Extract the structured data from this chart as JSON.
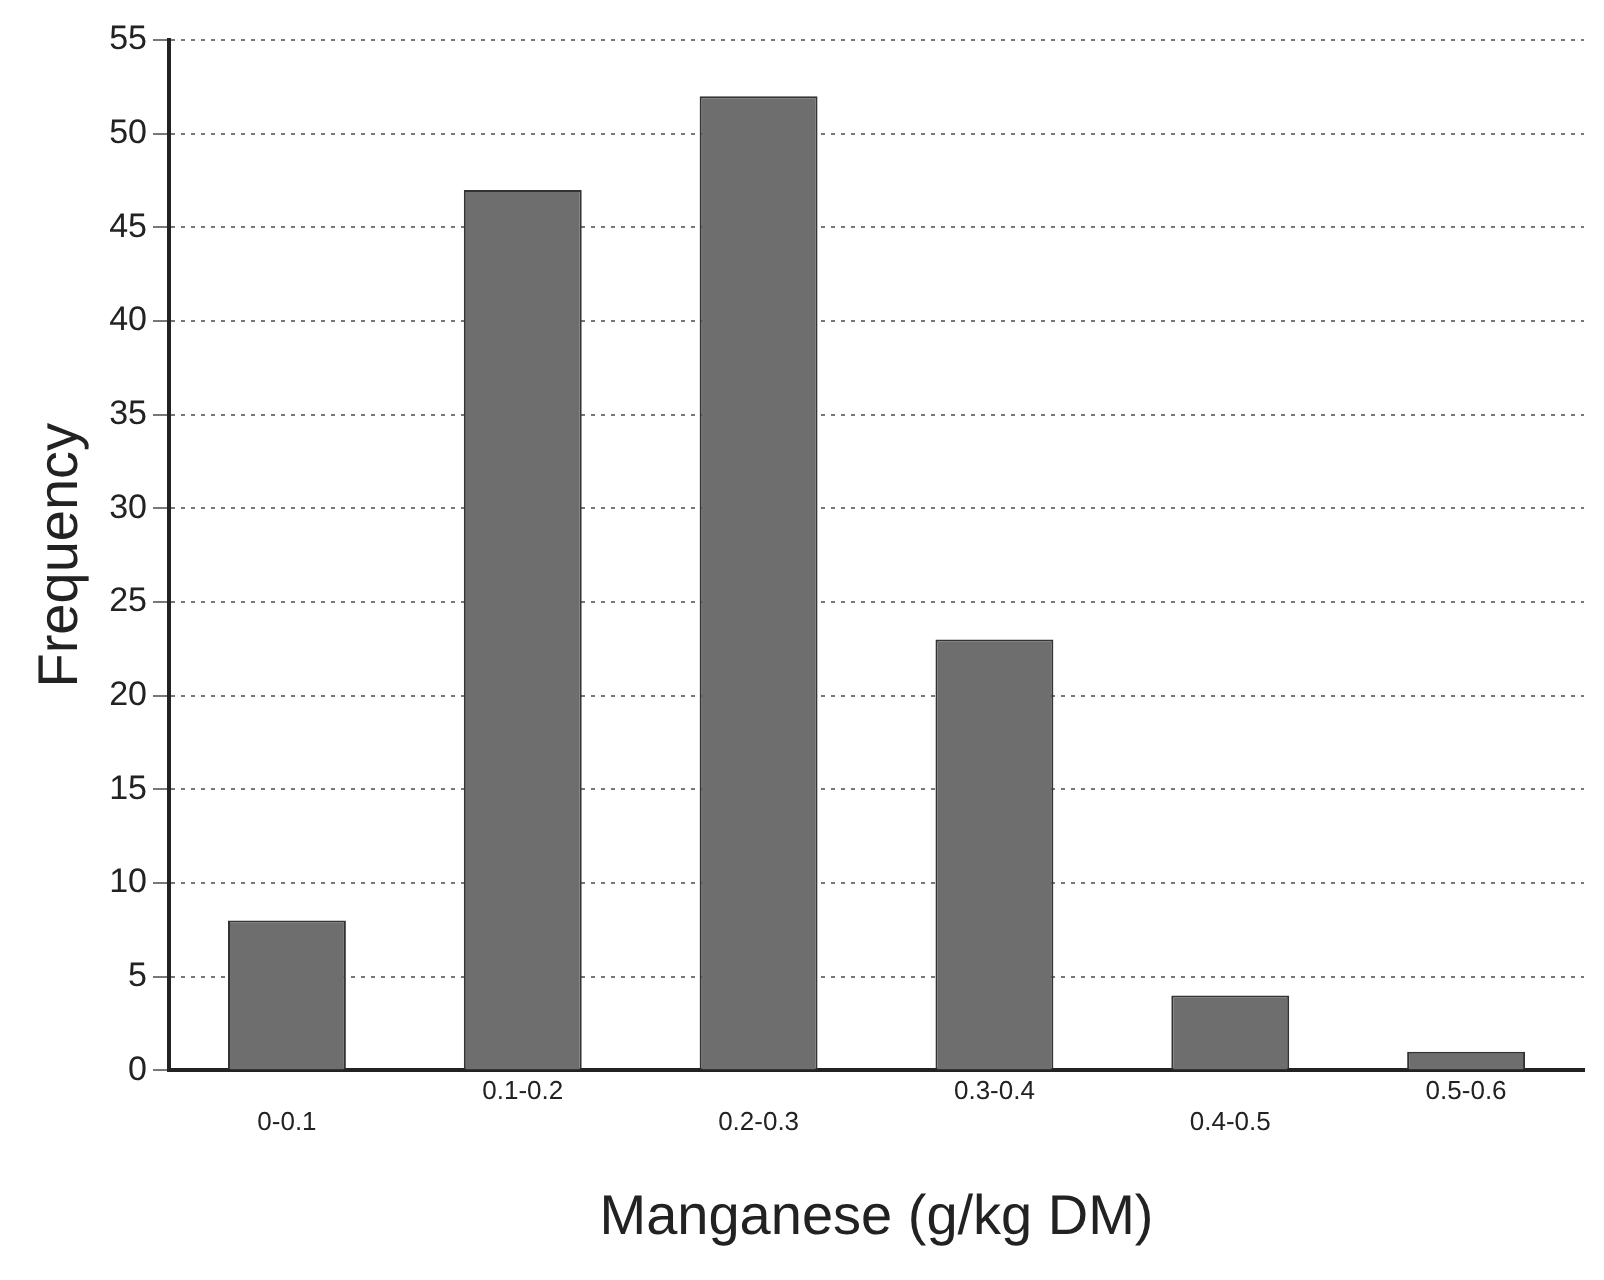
{
  "chart_data": {
    "type": "bar",
    "xlabel": "Manganese (g/kg DM)",
    "ylabel": "Frequency",
    "categories": [
      "0-0.1",
      "0.1-0.2",
      "0.2-0.3",
      "0.3-0.4",
      "0.4-0.5",
      "0.5-0.6"
    ],
    "values": [
      8,
      47,
      52,
      23,
      4,
      1
    ],
    "color": "#6e6e6e",
    "ylim": [
      0,
      55
    ],
    "yticks": [
      0,
      5,
      10,
      15,
      20,
      25,
      30,
      35,
      40,
      45,
      50,
      55
    ],
    "grid": "y"
  }
}
